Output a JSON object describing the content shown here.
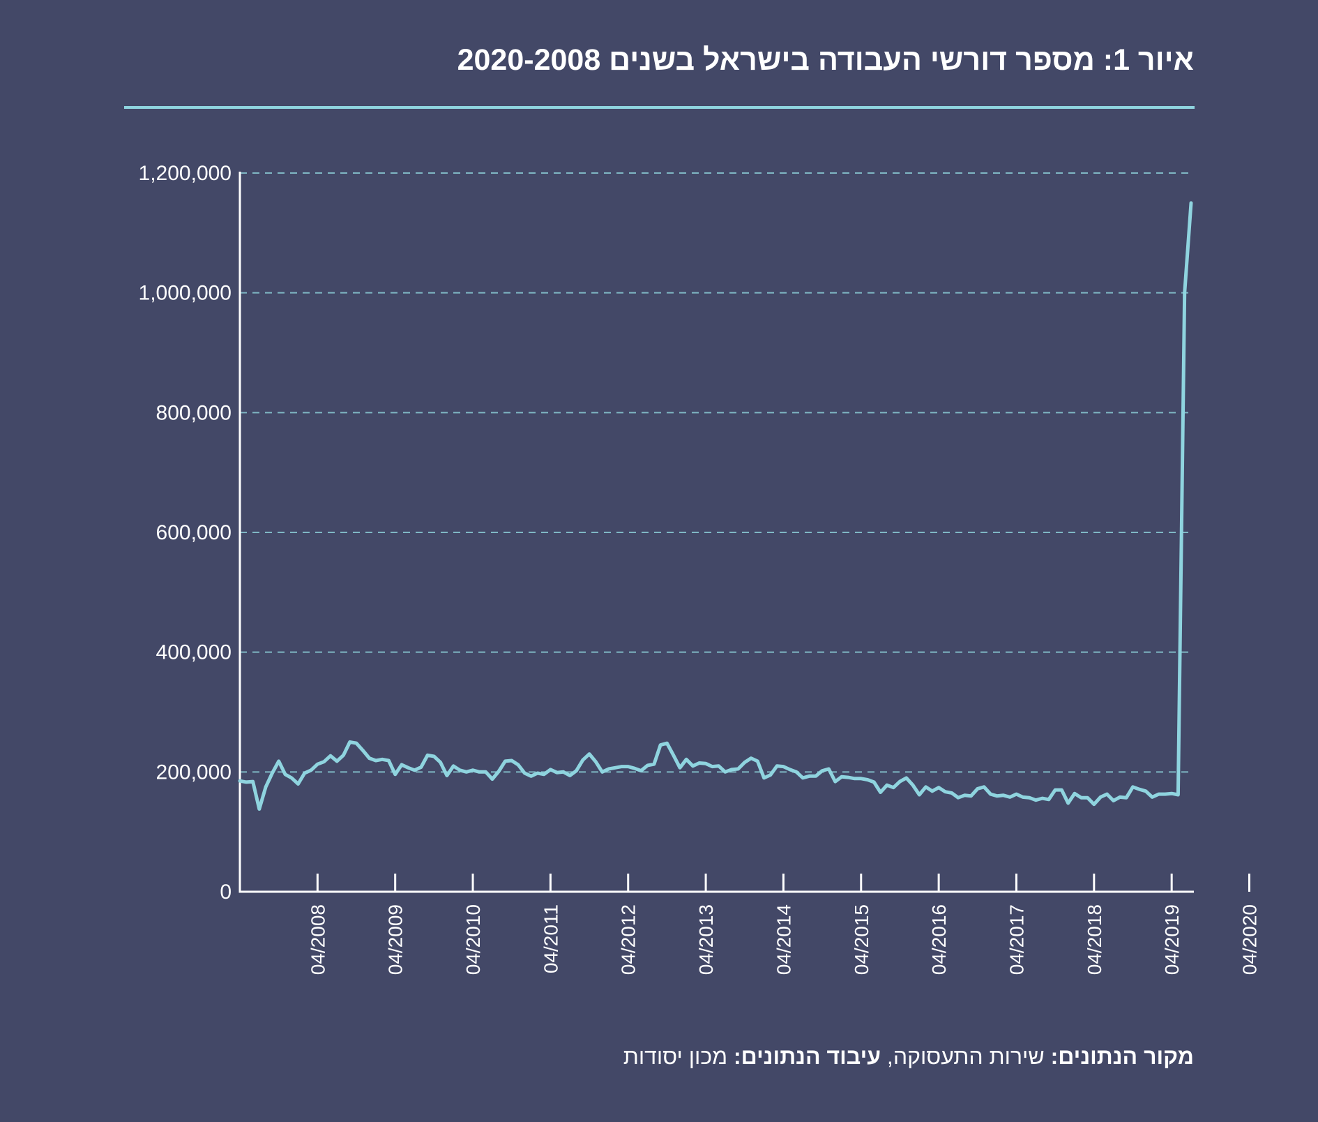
{
  "title": "איור 1: מספר דורשי העבודה בישראל בשנים 2020-2008",
  "footer": {
    "source_label": "מקור הנתונים:",
    "source_value": " שירות התעסוקה, ",
    "processing_label": "עיבוד הנתונים:",
    "processing_value": " מכון יסודות"
  },
  "colors": {
    "background": "#434867",
    "line": "#8fd4df",
    "axis": "#ffffff",
    "grid": "#7fb7c4",
    "text": "#ffffff"
  },
  "chart_data": {
    "type": "line",
    "title": "איור 1: מספר דורשי העבודה בישראל בשנים 2020-2008",
    "xlabel": "",
    "ylabel": "",
    "ylim": [
      0,
      1200000
    ],
    "yticks": [
      0,
      200000,
      400000,
      600000,
      800000,
      1000000,
      1200000
    ],
    "ytick_labels": [
      "0",
      "200,000",
      "400,000",
      "600,000",
      "800,000",
      "1,000,000",
      "1,200,000"
    ],
    "xticks": [
      "2008-04",
      "2009-04",
      "2010-04",
      "2011-04",
      "2012-04",
      "2013-04",
      "2014-04",
      "2015-04",
      "2016-04",
      "2017-04",
      "2018-04",
      "2019-04",
      "2020-04"
    ],
    "xtick_labels": [
      "04/2008",
      "04/2009",
      "04/2010",
      "04/2011",
      "04/2012",
      "04/2013",
      "04/2014",
      "04/2015",
      "04/2016",
      "04/2017",
      "04/2018",
      "04/2019",
      "04/2020"
    ],
    "grid": "horizontal-dashed",
    "legend": "none",
    "series": [
      {
        "values": [
          [
            "2007-04",
            185000
          ],
          [
            "2007-05",
            183000
          ],
          [
            "2007-06",
            184000
          ],
          [
            "2007-07",
            138000
          ],
          [
            "2007-08",
            175000
          ],
          [
            "2007-09",
            198000
          ],
          [
            "2007-10",
            218000
          ],
          [
            "2007-11",
            196000
          ],
          [
            "2007-12",
            190000
          ],
          [
            "2008-01",
            180000
          ],
          [
            "2008-02",
            198000
          ],
          [
            "2008-03",
            203000
          ],
          [
            "2008-04",
            213000
          ],
          [
            "2008-05",
            217000
          ],
          [
            "2008-06",
            227000
          ],
          [
            "2008-07",
            218000
          ],
          [
            "2008-08",
            228000
          ],
          [
            "2008-09",
            250000
          ],
          [
            "2008-10",
            248000
          ],
          [
            "2008-11",
            236000
          ],
          [
            "2008-12",
            223000
          ],
          [
            "2009-01",
            219000
          ],
          [
            "2009-02",
            221000
          ],
          [
            "2009-03",
            219000
          ],
          [
            "2009-04",
            196000
          ],
          [
            "2009-05",
            212000
          ],
          [
            "2009-06",
            207000
          ],
          [
            "2009-07",
            203000
          ],
          [
            "2009-08",
            208000
          ],
          [
            "2009-09",
            228000
          ],
          [
            "2009-10",
            226000
          ],
          [
            "2009-11",
            216000
          ],
          [
            "2009-12",
            194000
          ],
          [
            "2010-01",
            210000
          ],
          [
            "2010-02",
            203000
          ],
          [
            "2010-03",
            200000
          ],
          [
            "2010-04",
            203000
          ],
          [
            "2010-05",
            200000
          ],
          [
            "2010-06",
            200000
          ],
          [
            "2010-07",
            188000
          ],
          [
            "2010-08",
            201000
          ],
          [
            "2010-09",
            218000
          ],
          [
            "2010-10",
            219000
          ],
          [
            "2010-11",
            212000
          ],
          [
            "2010-12",
            198000
          ],
          [
            "2011-01",
            193000
          ],
          [
            "2011-02",
            198000
          ],
          [
            "2011-03",
            196000
          ],
          [
            "2011-04",
            204000
          ],
          [
            "2011-05",
            199000
          ],
          [
            "2011-06",
            200000
          ],
          [
            "2011-07",
            194000
          ],
          [
            "2011-08",
            202000
          ],
          [
            "2011-09",
            220000
          ],
          [
            "2011-10",
            230000
          ],
          [
            "2011-11",
            217000
          ],
          [
            "2011-12",
            200000
          ],
          [
            "2012-01",
            205000
          ],
          [
            "2012-02",
            207000
          ],
          [
            "2012-03",
            209000
          ],
          [
            "2012-04",
            209000
          ],
          [
            "2012-05",
            206000
          ],
          [
            "2012-06",
            202000
          ],
          [
            "2012-07",
            211000
          ],
          [
            "2012-08",
            213000
          ],
          [
            "2012-09",
            245000
          ],
          [
            "2012-10",
            248000
          ],
          [
            "2012-11",
            228000
          ],
          [
            "2012-12",
            207000
          ],
          [
            "2013-01",
            221000
          ],
          [
            "2013-02",
            210000
          ],
          [
            "2013-03",
            215000
          ],
          [
            "2013-04",
            214000
          ],
          [
            "2013-05",
            209000
          ],
          [
            "2013-06",
            210000
          ],
          [
            "2013-07",
            200000
          ],
          [
            "2013-08",
            204000
          ],
          [
            "2013-09",
            205000
          ],
          [
            "2013-10",
            216000
          ],
          [
            "2013-11",
            223000
          ],
          [
            "2013-12",
            218000
          ],
          [
            "2014-01",
            190000
          ],
          [
            "2014-02",
            195000
          ],
          [
            "2014-03",
            210000
          ],
          [
            "2014-04",
            209000
          ],
          [
            "2014-05",
            204000
          ],
          [
            "2014-06",
            200000
          ],
          [
            "2014-07",
            190000
          ],
          [
            "2014-08",
            193000
          ],
          [
            "2014-09",
            193000
          ],
          [
            "2014-10",
            202000
          ],
          [
            "2014-11",
            205000
          ],
          [
            "2014-12",
            184000
          ],
          [
            "2015-01",
            192000
          ],
          [
            "2015-02",
            191000
          ],
          [
            "2015-03",
            189000
          ],
          [
            "2015-04",
            189000
          ],
          [
            "2015-05",
            187000
          ],
          [
            "2015-06",
            183000
          ],
          [
            "2015-07",
            166000
          ],
          [
            "2015-08",
            178000
          ],
          [
            "2015-09",
            174000
          ],
          [
            "2015-10",
            184000
          ],
          [
            "2015-11",
            190000
          ],
          [
            "2015-12",
            178000
          ],
          [
            "2016-01",
            162000
          ],
          [
            "2016-02",
            175000
          ],
          [
            "2016-03",
            168000
          ],
          [
            "2016-04",
            174000
          ],
          [
            "2016-05",
            167000
          ],
          [
            "2016-06",
            165000
          ],
          [
            "2016-07",
            157000
          ],
          [
            "2016-08",
            161000
          ],
          [
            "2016-09",
            160000
          ],
          [
            "2016-10",
            172000
          ],
          [
            "2016-11",
            175000
          ],
          [
            "2016-12",
            163000
          ],
          [
            "2017-01",
            160000
          ],
          [
            "2017-02",
            161000
          ],
          [
            "2017-03",
            158000
          ],
          [
            "2017-04",
            163000
          ],
          [
            "2017-05",
            158000
          ],
          [
            "2017-06",
            157000
          ],
          [
            "2017-07",
            153000
          ],
          [
            "2017-08",
            156000
          ],
          [
            "2017-09",
            154000
          ],
          [
            "2017-10",
            170000
          ],
          [
            "2017-11",
            170000
          ],
          [
            "2017-12",
            148000
          ],
          [
            "2018-01",
            164000
          ],
          [
            "2018-02",
            157000
          ],
          [
            "2018-03",
            157000
          ],
          [
            "2018-04",
            146000
          ],
          [
            "2018-05",
            158000
          ],
          [
            "2018-06",
            163000
          ],
          [
            "2018-07",
            152000
          ],
          [
            "2018-08",
            158000
          ],
          [
            "2018-09",
            157000
          ],
          [
            "2018-10",
            175000
          ],
          [
            "2018-11",
            171000
          ],
          [
            "2018-12",
            168000
          ],
          [
            "2019-01",
            158000
          ],
          [
            "2019-02",
            163000
          ],
          [
            "2019-03",
            163000
          ],
          [
            "2019-04",
            164000
          ],
          [
            "2019-05",
            162000
          ],
          [
            "2019-06",
            1000000
          ],
          [
            "2019-07",
            1150000
          ]
        ]
      }
    ]
  }
}
